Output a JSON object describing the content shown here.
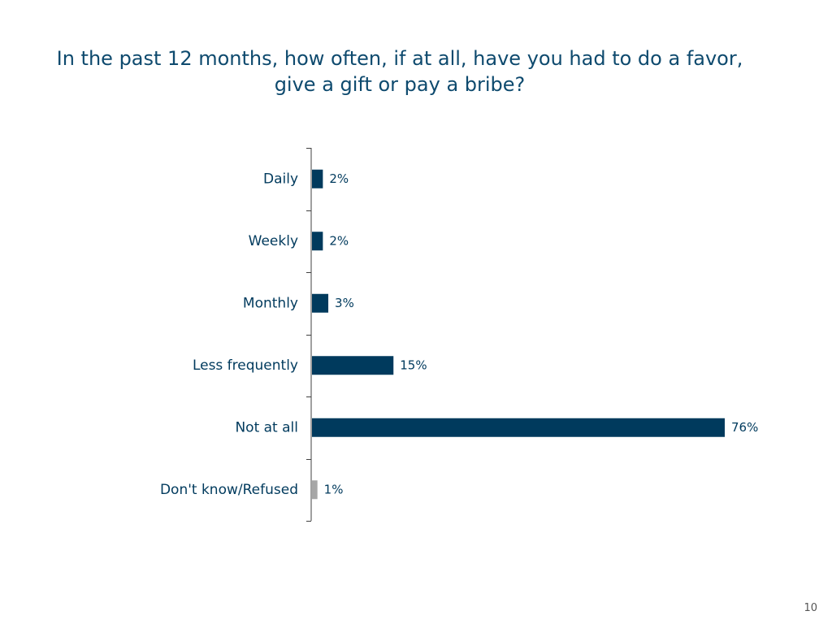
{
  "title": {
    "line1": "In the past 12 months, how often, if at all, have you had to do a favor,",
    "line2": "give a gift or pay a bribe?"
  },
  "page_number": "10",
  "colors": {
    "title": "#0e4a6e",
    "bar": "#003a5d",
    "bar_muted": "#a6a6a6",
    "label": "#003a5d",
    "axis": "#404040"
  },
  "chart_data": {
    "type": "bar",
    "orientation": "horizontal",
    "categories": [
      "Daily",
      "Weekly",
      "Monthly",
      "Less frequently",
      "Not at all",
      "Don't know/Refused"
    ],
    "values": [
      2,
      2,
      3,
      15,
      76,
      1
    ],
    "value_labels": [
      "2%",
      "2%",
      "3%",
      "15%",
      "76%",
      "1%"
    ],
    "muted_categories": [
      "Don't know/Refused"
    ],
    "unit": "%",
    "xlim": [
      0,
      76
    ],
    "grid": false,
    "legend": "none"
  }
}
